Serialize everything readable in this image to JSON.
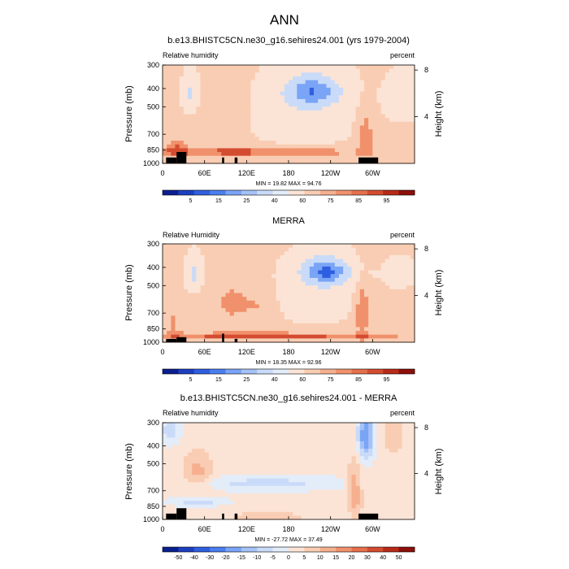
{
  "page_title": "ANN",
  "chart_data": [
    {
      "type": "heatmap",
      "title": "b.e13.BHISTC5CN.ne30_g16.sehires24.001 (yrs 1979-2004)",
      "left_label": "Relative humidity",
      "right_label": "percent",
      "ylabel": "Pressure (mb)",
      "ylabel_right": "Height (km)",
      "x_ticks": [
        "0",
        "60E",
        "120E",
        "180",
        "120W",
        "60W"
      ],
      "x_tick_lon": [
        0,
        60,
        120,
        180,
        240,
        300
      ],
      "xlim": [
        0,
        360
      ],
      "y_ticks": [
        "300",
        "400",
        "500",
        "700",
        "850",
        "1000"
      ],
      "y_tick_p": [
        300,
        400,
        500,
        700,
        850,
        1000
      ],
      "ylim": [
        300,
        1000
      ],
      "y_scale": "log",
      "right_ticks": [
        "8",
        "4"
      ],
      "right_tick_km": [
        8,
        4
      ],
      "stats": "MIN = 19.82  MAX = 94.76",
      "colorbar_labels": [
        "5",
        "15",
        "25",
        "40",
        "60",
        "75",
        "85",
        "95"
      ],
      "colorbar_colors": [
        "#0a1f8f",
        "#1c3fbf",
        "#2f5fe0",
        "#4a7ff0",
        "#7aa4f5",
        "#a5c2f7",
        "#c9dbf8",
        "#e3ecf9",
        "#fbe4d6",
        "#f9cdb3",
        "#f6b08f",
        "#f0916c",
        "#e66f4c",
        "#d44c30",
        "#b82a18",
        "#8c0f0a"
      ],
      "fields": {
        "base": 62,
        "blobs": [
          {
            "lon": 130,
            "p": 870,
            "slon": 170,
            "sp": 55,
            "amp": 26
          },
          {
            "lon": 20,
            "p": 820,
            "slon": 18,
            "sp": 110,
            "amp": 18
          },
          {
            "lon": 290,
            "p": 700,
            "slon": 12,
            "sp": 220,
            "amp": 22
          },
          {
            "lon": 95,
            "p": 600,
            "slon": 25,
            "sp": 260,
            "amp": 10
          },
          {
            "lon": 215,
            "p": 410,
            "slon": 45,
            "sp": 90,
            "amp": -40
          },
          {
            "lon": 200,
            "p": 560,
            "slon": 70,
            "sp": 200,
            "amp": -14
          },
          {
            "lon": 40,
            "p": 420,
            "slon": 10,
            "sp": 80,
            "amp": -26
          },
          {
            "lon": 345,
            "p": 450,
            "slon": 25,
            "sp": 120,
            "amp": -12
          }
        ]
      },
      "topography": [
        [
          5,
          930
        ],
        [
          20,
          870
        ],
        [
          34,
          930
        ],
        [
          85,
          930
        ],
        [
          103,
          930
        ],
        [
          280,
          930
        ]
      ]
    },
    {
      "type": "heatmap",
      "title": "MERRA",
      "left_label": "Relative Humidity",
      "right_label": "percent",
      "ylabel": "Pressure (mb)",
      "ylabel_right": "Height (km)",
      "x_ticks": [
        "0",
        "60E",
        "120E",
        "180",
        "120W",
        "60W"
      ],
      "x_tick_lon": [
        0,
        60,
        120,
        180,
        240,
        300
      ],
      "xlim": [
        0,
        360
      ],
      "y_ticks": [
        "300",
        "400",
        "500",
        "700",
        "850",
        "1000"
      ],
      "y_tick_p": [
        300,
        400,
        500,
        700,
        850,
        1000
      ],
      "ylim": [
        300,
        1000
      ],
      "y_scale": "log",
      "right_ticks": [
        "8",
        "4"
      ],
      "right_tick_km": [
        8,
        4
      ],
      "stats": "MIN = 18.35  MAX = 92.96",
      "colorbar_labels": [
        "5",
        "15",
        "25",
        "40",
        "60",
        "75",
        "85",
        "95"
      ],
      "colorbar_colors": [
        "#0a1f8f",
        "#1c3fbf",
        "#2f5fe0",
        "#4a7ff0",
        "#7aa4f5",
        "#a5c2f7",
        "#c9dbf8",
        "#e3ecf9",
        "#fbe4d6",
        "#f9cdb3",
        "#f6b08f",
        "#f0916c",
        "#e66f4c",
        "#d44c30",
        "#b82a18",
        "#8c0f0a"
      ],
      "fields": {
        "base": 64,
        "blobs": [
          {
            "lon": 150,
            "p": 930,
            "slon": 200,
            "sp": 45,
            "amp": 26
          },
          {
            "lon": 100,
            "p": 620,
            "slon": 30,
            "sp": 180,
            "amp": 14
          },
          {
            "lon": 140,
            "p": 640,
            "slon": 20,
            "sp": 150,
            "amp": 10
          },
          {
            "lon": 285,
            "p": 680,
            "slon": 10,
            "sp": 250,
            "amp": 24
          },
          {
            "lon": 15,
            "p": 800,
            "slon": 12,
            "sp": 150,
            "amp": 14
          },
          {
            "lon": 235,
            "p": 420,
            "slon": 40,
            "sp": 80,
            "amp": -44
          },
          {
            "lon": 220,
            "p": 560,
            "slon": 60,
            "sp": 220,
            "amp": -14
          },
          {
            "lon": 45,
            "p": 430,
            "slon": 12,
            "sp": 90,
            "amp": -30
          },
          {
            "lon": 340,
            "p": 430,
            "slon": 20,
            "sp": 70,
            "amp": -20
          }
        ]
      },
      "topography": [
        [
          5,
          960
        ],
        [
          20,
          940
        ],
        [
          28,
          920
        ],
        [
          34,
          900
        ],
        [
          280,
          960
        ]
      ]
    },
    {
      "type": "heatmap",
      "title": "b.e13.BHISTC5CN.ne30_g16.sehires24.001 - MERRA",
      "left_label": "Relative humidity",
      "right_label": "percent",
      "ylabel": "Pressure (mb)",
      "ylabel_right": "Height (km)",
      "x_ticks": [
        "0",
        "60E",
        "120E",
        "180",
        "120W",
        "60W"
      ],
      "x_tick_lon": [
        0,
        60,
        120,
        180,
        240,
        300
      ],
      "xlim": [
        0,
        360
      ],
      "y_ticks": [
        "300",
        "400",
        "500",
        "700",
        "850",
        "1000"
      ],
      "y_tick_p": [
        300,
        400,
        500,
        700,
        850,
        1000
      ],
      "ylim": [
        300,
        1000
      ],
      "y_scale": "log",
      "right_ticks": [
        "8",
        "4"
      ],
      "right_tick_km": [
        8,
        4
      ],
      "stats": "MIN = -27.72  MAX = 37.49",
      "colorbar_labels": [
        "-50",
        "-40",
        "-30",
        "-20",
        "-15",
        "-10",
        "-5",
        "0",
        "5",
        "10",
        "15",
        "20",
        "30",
        "40",
        "50"
      ],
      "colorbar_colors": [
        "#0a1f8f",
        "#1c3fbf",
        "#2f5fe0",
        "#4a7ff0",
        "#7aa4f5",
        "#a5c2f7",
        "#c9dbf8",
        "#e3ecf9",
        "#fbe4d6",
        "#f9cdb3",
        "#f6b08f",
        "#f0916c",
        "#e66f4c",
        "#d44c30",
        "#b82a18",
        "#8c0f0a"
      ],
      "fields": {
        "base": 2,
        "blobs": [
          {
            "lon": 150,
            "p": 640,
            "slon": 110,
            "sp": 60,
            "amp": -9
          },
          {
            "lon": 290,
            "p": 360,
            "slon": 12,
            "sp": 110,
            "amp": -22
          },
          {
            "lon": 275,
            "p": 700,
            "slon": 10,
            "sp": 250,
            "amp": 12
          },
          {
            "lon": 50,
            "p": 560,
            "slon": 20,
            "sp": 140,
            "amp": 10
          },
          {
            "lon": 10,
            "p": 330,
            "slon": 15,
            "sp": 60,
            "amp": -10
          },
          {
            "lon": 330,
            "p": 360,
            "slon": 15,
            "sp": 80,
            "amp": 8
          },
          {
            "lon": 50,
            "p": 800,
            "slon": 40,
            "sp": 50,
            "amp": -10
          },
          {
            "lon": 150,
            "p": 960,
            "slon": 60,
            "sp": 40,
            "amp": 7
          }
        ]
      },
      "topography": [
        [
          5,
          930
        ],
        [
          20,
          870
        ],
        [
          34,
          930
        ],
        [
          85,
          930
        ],
        [
          103,
          930
        ],
        [
          280,
          930
        ]
      ]
    }
  ]
}
